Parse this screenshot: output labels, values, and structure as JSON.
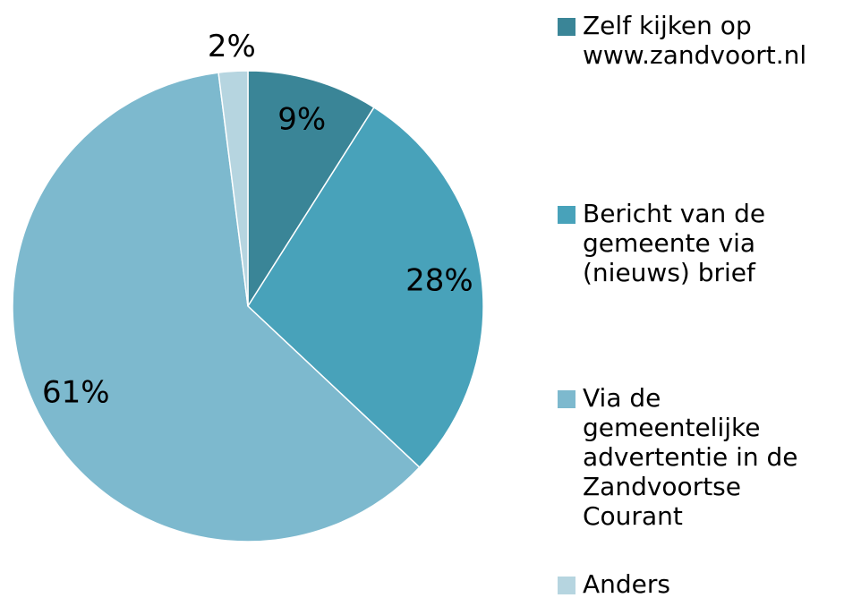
{
  "chart_data": {
    "type": "pie",
    "categories": [
      "Zelf kijken op www.zandvoort.nl",
      "Bericht van de gemeente via (nieuws) brief",
      "Via de gemeentelijke advertentie in de Zandvoortse Courant",
      "Anders"
    ],
    "values": [
      9,
      28,
      61,
      2
    ],
    "value_labels": [
      "9%",
      "28%",
      "61%",
      "2%"
    ],
    "colors": [
      "#3a8597",
      "#48a2ba",
      "#7db9ce",
      "#b6d5e0"
    ],
    "legend": "right"
  }
}
